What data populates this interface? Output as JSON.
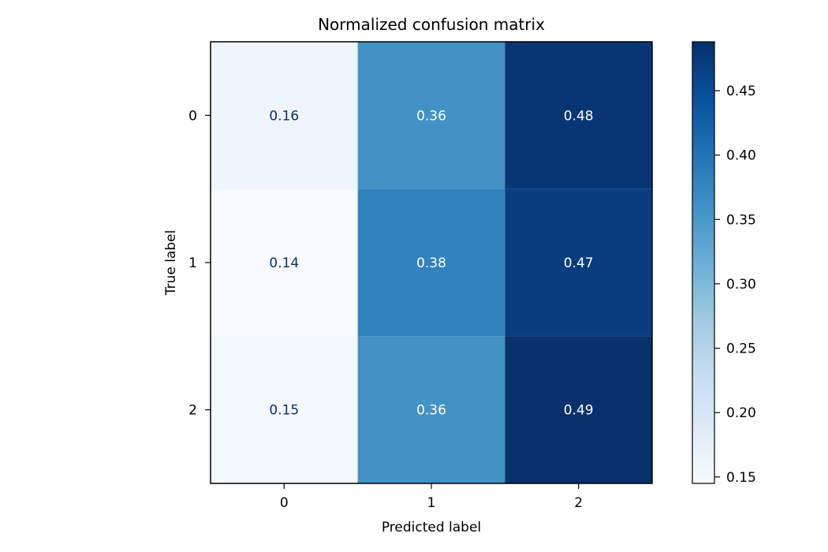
{
  "chart_data": {
    "type": "heatmap",
    "title": "Normalized confusion matrix",
    "xlabel": "Predicted label",
    "ylabel": "True label",
    "x_categories": [
      "0",
      "1",
      "2"
    ],
    "y_categories": [
      "0",
      "1",
      "2"
    ],
    "values": [
      [
        0.16,
        0.36,
        0.48
      ],
      [
        0.14,
        0.38,
        0.47
      ],
      [
        0.15,
        0.36,
        0.49
      ]
    ],
    "cell_labels": [
      [
        "0.16",
        "0.36",
        "0.48"
      ],
      [
        "0.14",
        "0.38",
        "0.47"
      ],
      [
        "0.15",
        "0.36",
        "0.49"
      ]
    ],
    "colormap": "Blues",
    "colorbar": {
      "range": [
        0.145,
        0.488
      ],
      "ticks": [
        0.15,
        0.2,
        0.25,
        0.3,
        0.35,
        0.4,
        0.45
      ],
      "tick_labels": [
        "0.15",
        "0.20",
        "0.25",
        "0.30",
        "0.35",
        "0.40",
        "0.45"
      ]
    },
    "light_text_color": "#ffffff",
    "dark_text_color": "#08306b"
  }
}
